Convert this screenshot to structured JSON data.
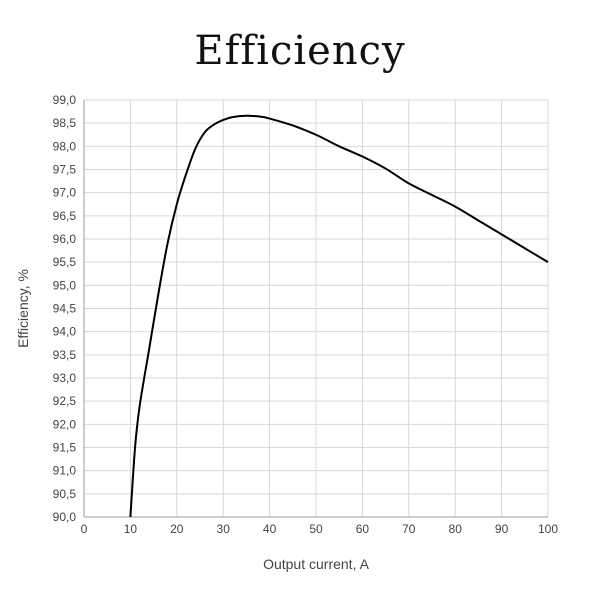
{
  "chart_data": {
    "type": "line",
    "title": "Efficiency",
    "xlabel": "Output current, A",
    "ylabel": "Efficiency, %",
    "xlim": [
      0,
      100
    ],
    "ylim": [
      90.0,
      99.0
    ],
    "x_ticks": [
      "0",
      "10",
      "20",
      "30",
      "40",
      "50",
      "60",
      "70",
      "80",
      "90",
      "100"
    ],
    "y_ticks": [
      "90,0",
      "90,5",
      "91,0",
      "91,5",
      "92,0",
      "92,5",
      "93,0",
      "93,5",
      "94,0",
      "94,5",
      "95,0",
      "95,5",
      "96,0",
      "96,5",
      "97,0",
      "97,5",
      "98,0",
      "98,5",
      "99,0"
    ],
    "grid": true,
    "series": [
      {
        "color": "#000000",
        "x": [
          10,
          11,
          12,
          14,
          16,
          18,
          20,
          22,
          24,
          26,
          28,
          30,
          32,
          35,
          38,
          40,
          45,
          50,
          55,
          60,
          65,
          70,
          75,
          80,
          85,
          90,
          95,
          100
        ],
        "y": [
          90.0,
          91.5,
          92.4,
          93.6,
          94.8,
          95.9,
          96.75,
          97.4,
          97.95,
          98.3,
          98.47,
          98.57,
          98.63,
          98.66,
          98.64,
          98.6,
          98.45,
          98.25,
          98.0,
          97.78,
          97.52,
          97.2,
          96.95,
          96.7,
          96.4,
          96.1,
          95.8,
          95.5
        ]
      }
    ]
  }
}
